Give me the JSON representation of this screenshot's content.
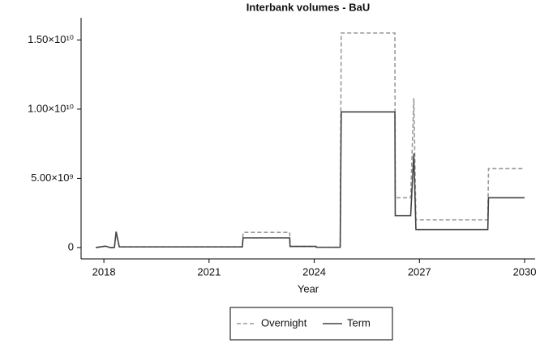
{
  "chart_data": {
    "type": "line",
    "title": "Interbank volumes - BaU",
    "x_label": "Year",
    "x": [
      2017.77,
      2018.05,
      2018.18,
      2018.3,
      2018.35,
      2018.44,
      2021.95,
      2021.97,
      2023.3,
      2023.31,
      2024.05,
      2024.06,
      2024.74,
      2024.77,
      2026.3,
      2026.31,
      2026.75,
      2026.84,
      2026.9,
      2028.95,
      2028.97,
      2030.0
    ],
    "series": [
      {
        "name": "Overnight",
        "color": "#999999",
        "dash": true,
        "values": [
          0,
          100000000,
          0,
          0,
          1100000000,
          50000000,
          50000000,
          1100000000,
          1100000000,
          80000000,
          80000000,
          20000000,
          20000000,
          15500000000,
          15500000000,
          3600000000,
          3600000000,
          10800000000,
          2000000000,
          2000000000,
          5700000000,
          5700000000
        ]
      },
      {
        "name": "Term",
        "color": "#444444",
        "dash": false,
        "values": [
          0,
          100000000,
          0,
          0,
          1150000000,
          50000000,
          50000000,
          700000000,
          700000000,
          80000000,
          80000000,
          20000000,
          20000000,
          9800000000,
          9800000000,
          2300000000,
          2300000000,
          6800000000,
          1300000000,
          1300000000,
          3600000000,
          3600000000
        ]
      }
    ],
    "xlim": [
      2017.35,
      2030.3
    ],
    "xticks": [
      2018,
      2021,
      2024,
      2027,
      2030
    ],
    "ylim": [
      -820000000,
      16600000000
    ],
    "yticks": [
      0,
      {
        "value": 5000000000,
        "label": "5.00×10⁹"
      },
      {
        "value": 10000000000,
        "label": "1.00×10¹⁰"
      },
      {
        "value": 15000000000,
        "label": "1.50×10¹⁰"
      }
    ]
  }
}
